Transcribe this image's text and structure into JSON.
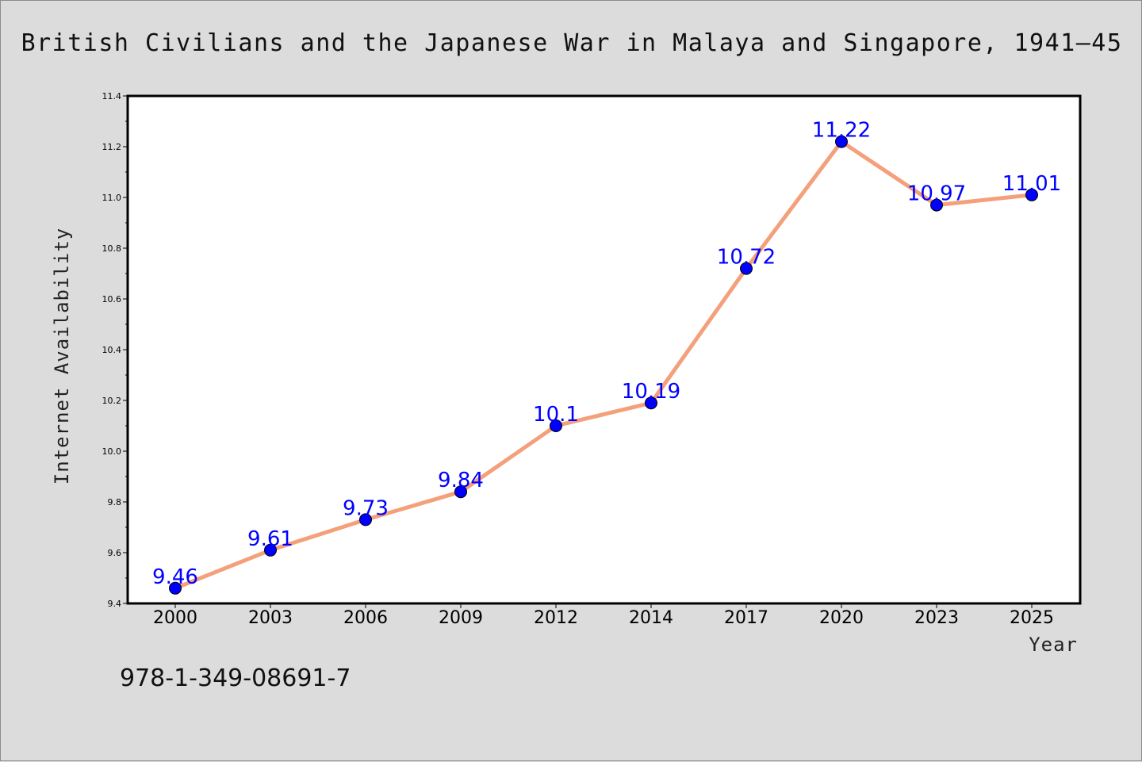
{
  "title": "British Civilians and the Japanese War in Malaya and Singapore, 1941–45",
  "isbn": "978-1-349-08691-7",
  "colors": {
    "background": "#dcdcdc",
    "plot_background": "#ffffff",
    "line": "#f4a07a",
    "marker": "#0000ff",
    "data_label": "#0000ff"
  },
  "chart_data": {
    "type": "line",
    "xlabel": "Year",
    "ylabel": "Internet Availability",
    "categories": [
      "2000",
      "2003",
      "2006",
      "2009",
      "2012",
      "2014",
      "2017",
      "2020",
      "2023",
      "2025"
    ],
    "series": [
      {
        "values": [
          9.46,
          9.61,
          9.73,
          9.84,
          10.1,
          10.19,
          10.72,
          11.22,
          10.97,
          11.01
        ],
        "labels": [
          "9.46",
          "9.61",
          "9.73",
          "9.84",
          "10.1",
          "10.19",
          "10.72",
          "11.22",
          "10.97",
          "11.01"
        ]
      }
    ],
    "ylim": [
      9.4,
      11.4
    ],
    "yticks": [
      "9.4",
      "9.6",
      "9.8",
      "10.0",
      "10.2",
      "10.4",
      "10.6",
      "10.8",
      "11.0",
      "11.2",
      "11.4"
    ],
    "grid": false,
    "legend": "none"
  }
}
